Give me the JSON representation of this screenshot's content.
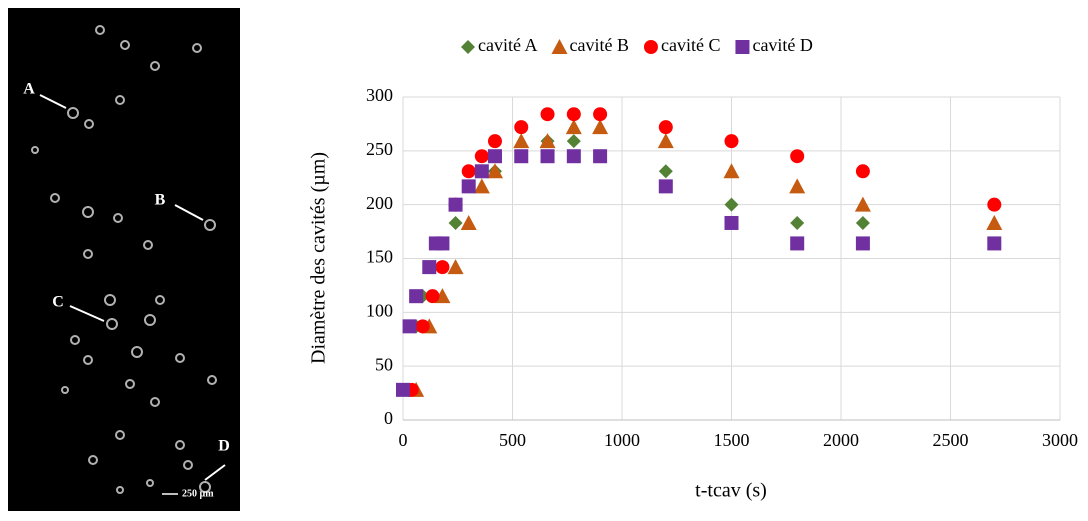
{
  "image": {
    "labels": [
      "A",
      "B",
      "C",
      "D"
    ],
    "scale": "250 µm"
  },
  "chart_data": {
    "type": "scatter",
    "xlabel": "t-tcav (s)",
    "ylabel": "Diamètre des cavités (µm)",
    "xlim": [
      0,
      3000
    ],
    "xticks": [
      0,
      500,
      1000,
      1500,
      2000,
      2500,
      3000
    ],
    "ylim": [
      0,
      300
    ],
    "yticks": [
      0,
      50,
      100,
      150,
      200,
      250,
      300
    ],
    "grid": true,
    "legend": "top",
    "series": [
      {
        "name": "cavité A",
        "color": "#548235",
        "marker": "diamond",
        "x": [
          30,
          60,
          90,
          240,
          300,
          360,
          420,
          540,
          660,
          780,
          900,
          1200,
          1500,
          1800,
          2100,
          2700
        ],
        "values": [
          28,
          87,
          115,
          183,
          217,
          231,
          231,
          245,
          259,
          259,
          245,
          231,
          200,
          183,
          183,
          164
        ]
      },
      {
        "name": "cavité B",
        "color": "#c55a11",
        "marker": "triangle",
        "x": [
          60,
          120,
          180,
          240,
          300,
          360,
          420,
          540,
          660,
          780,
          900,
          1200,
          1500,
          1800,
          2100,
          2700
        ],
        "values": [
          28,
          87,
          115,
          142,
          183,
          217,
          231,
          259,
          259,
          272,
          272,
          259,
          231,
          217,
          200,
          183
        ]
      },
      {
        "name": "cavité C",
        "color": "#ff0000",
        "marker": "circle",
        "x": [
          40,
          90,
          135,
          180,
          240,
          300,
          360,
          420,
          540,
          660,
          780,
          900,
          1200,
          1500,
          1800,
          2100,
          2700
        ],
        "values": [
          28,
          87,
          115,
          142,
          200,
          231,
          245,
          259,
          272,
          284,
          284,
          284,
          272,
          259,
          245,
          231,
          200
        ]
      },
      {
        "name": "cavité D",
        "color": "#7030a0",
        "marker": "square",
        "x": [
          0,
          30,
          60,
          120,
          150,
          180,
          240,
          300,
          360,
          420,
          540,
          660,
          780,
          900,
          1200,
          1500,
          1800,
          2100,
          2700
        ],
        "values": [
          28,
          87,
          115,
          142,
          164,
          164,
          200,
          217,
          231,
          245,
          245,
          245,
          245,
          245,
          217,
          183,
          164,
          164,
          164
        ]
      }
    ]
  }
}
